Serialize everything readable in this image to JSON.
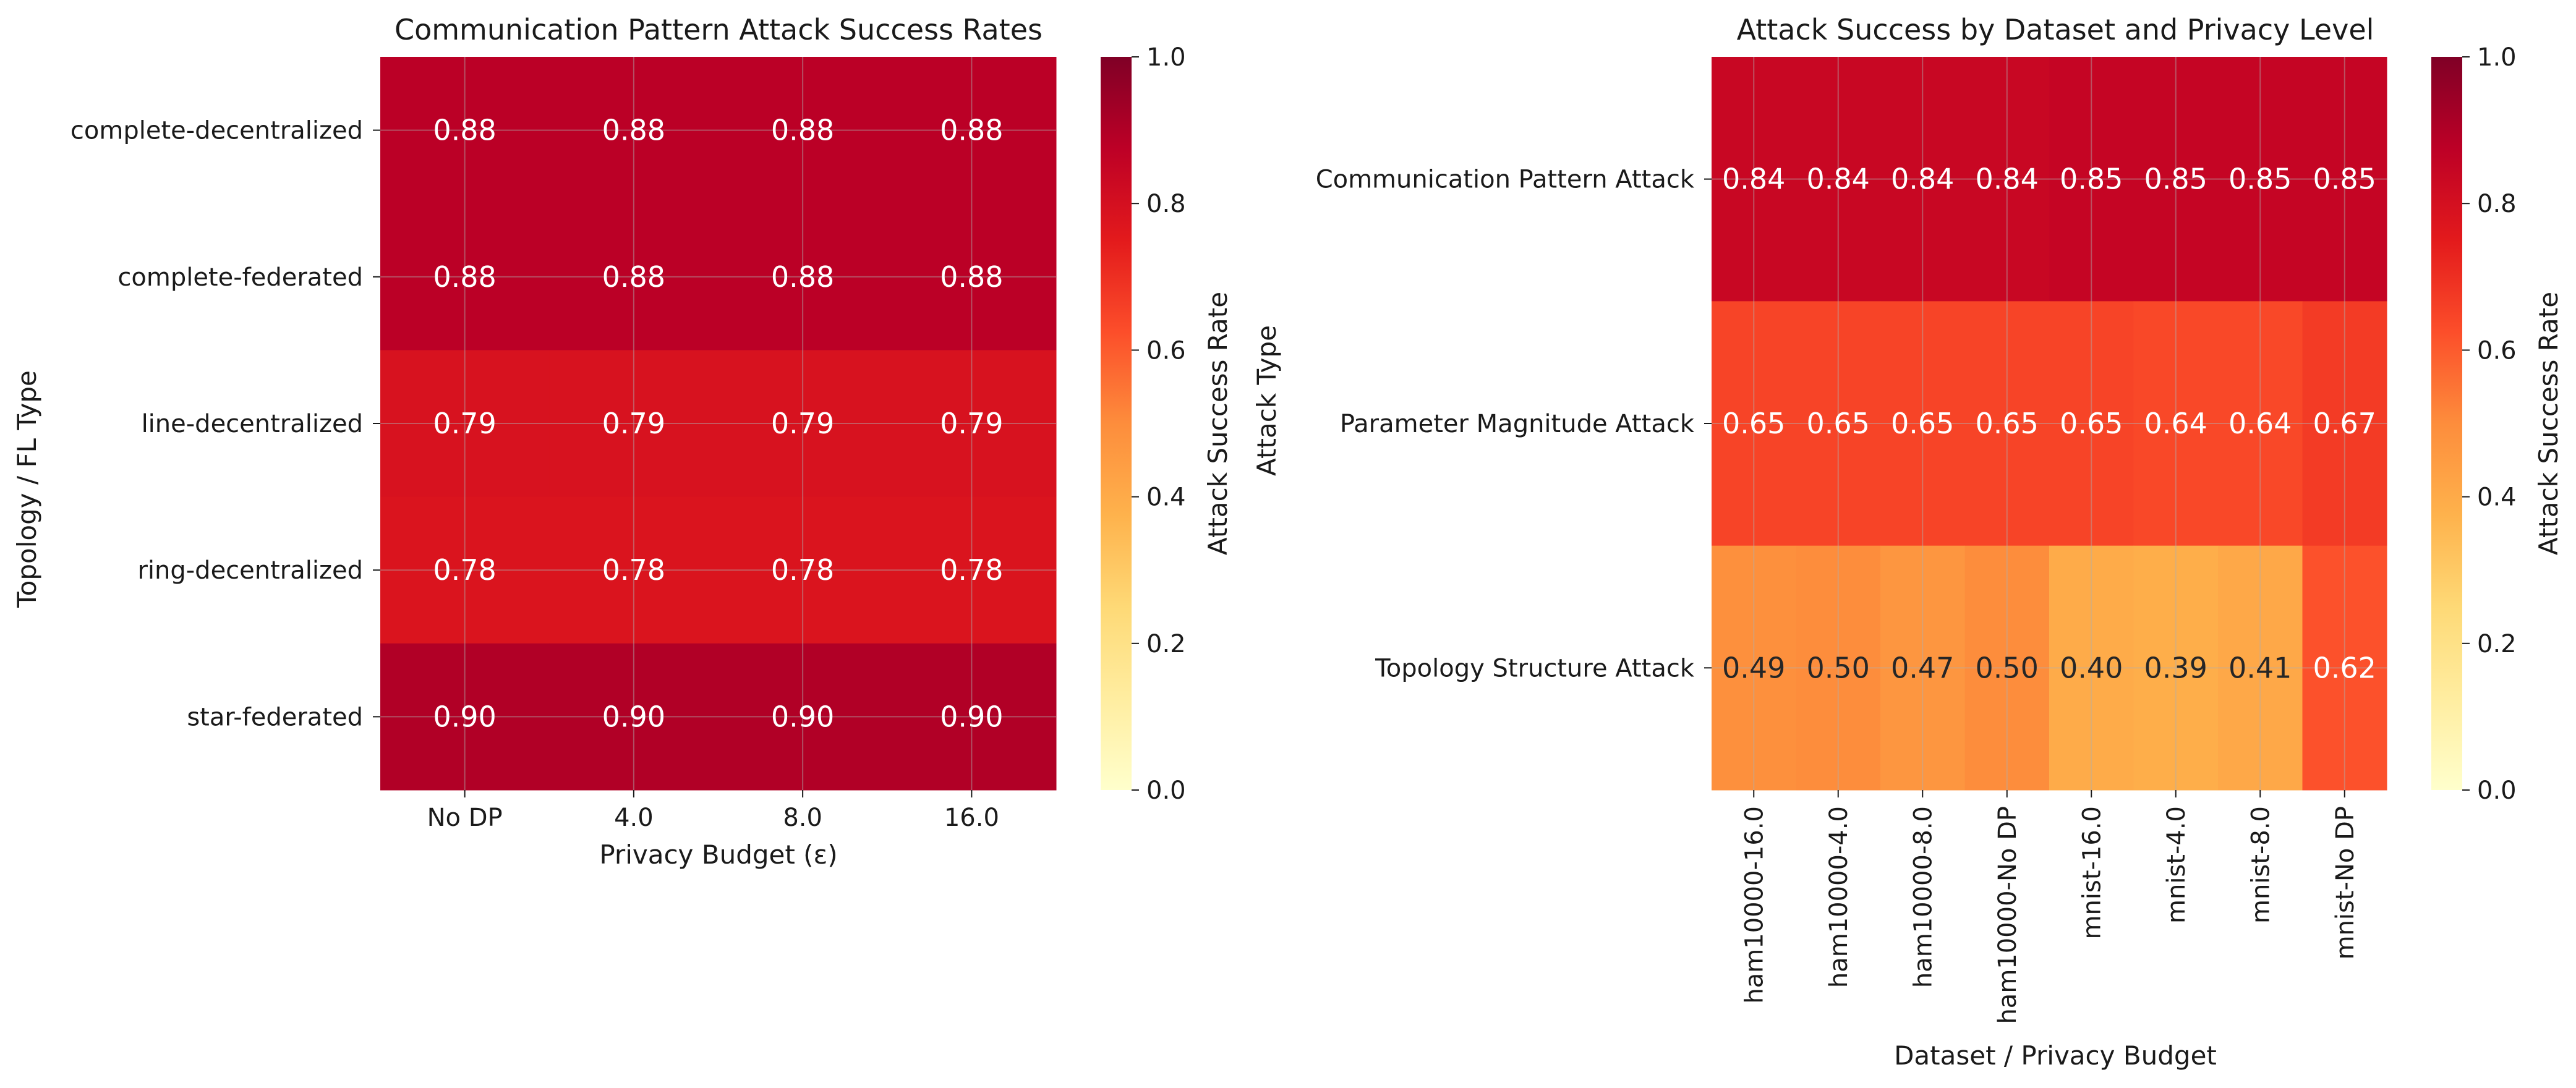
{
  "chart_data": [
    {
      "type": "heatmap",
      "title": "Communication Pattern Attack Success Rates",
      "xlabel": "Privacy Budget (ε)",
      "ylabel": "Topology / FL Type",
      "x_categories": [
        "No DP",
        "4.0",
        "8.0",
        "16.0"
      ],
      "y_categories": [
        "complete-decentralized",
        "complete-federated",
        "line-decentralized",
        "ring-decentralized",
        "star-federated"
      ],
      "values": [
        [
          0.88,
          0.88,
          0.88,
          0.88
        ],
        [
          0.88,
          0.88,
          0.88,
          0.88
        ],
        [
          0.79,
          0.79,
          0.79,
          0.79
        ],
        [
          0.78,
          0.78,
          0.78,
          0.78
        ],
        [
          0.9,
          0.9,
          0.9,
          0.9
        ]
      ],
      "colorbar": {
        "label": "Attack Success Rate",
        "range": [
          0.0,
          1.0
        ],
        "ticks": [
          "0.0",
          "0.2",
          "0.4",
          "0.6",
          "0.8",
          "1.0"
        ],
        "colormap": "YlOrRd"
      },
      "grid": true
    },
    {
      "type": "heatmap",
      "title": "Attack Success by Dataset and Privacy Level",
      "xlabel": "Dataset / Privacy Budget",
      "ylabel": "Attack Type",
      "x_categories": [
        "ham10000-16.0",
        "ham10000-4.0",
        "ham10000-8.0",
        "ham10000-No DP",
        "mnist-16.0",
        "mnist-4.0",
        "mnist-8.0",
        "mnist-No DP"
      ],
      "y_categories": [
        "Communication Pattern Attack",
        "Parameter Magnitude Attack",
        "Topology Structure Attack"
      ],
      "values": [
        [
          0.84,
          0.84,
          0.84,
          0.84,
          0.85,
          0.85,
          0.85,
          0.85
        ],
        [
          0.65,
          0.65,
          0.65,
          0.65,
          0.65,
          0.64,
          0.64,
          0.67
        ],
        [
          0.49,
          0.5,
          0.47,
          0.5,
          0.4,
          0.39,
          0.41,
          0.62
        ]
      ],
      "colorbar": {
        "label": "Attack Success Rate",
        "range": [
          0.0,
          1.0
        ],
        "ticks": [
          "0.0",
          "0.2",
          "0.4",
          "0.6",
          "0.8",
          "1.0"
        ],
        "colormap": "YlOrRd"
      },
      "grid": true
    }
  ]
}
